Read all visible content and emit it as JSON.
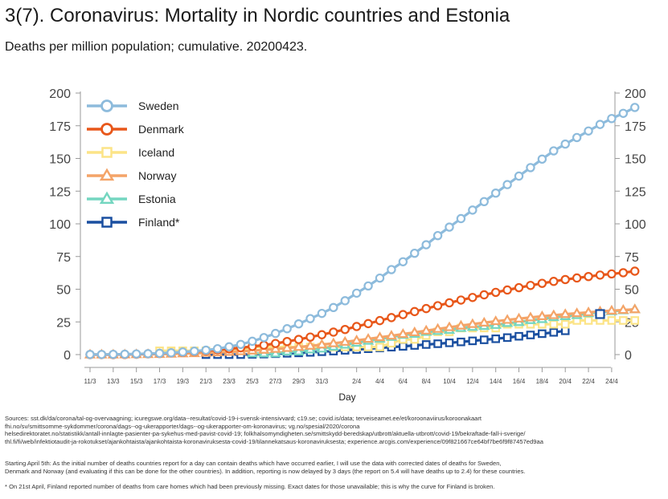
{
  "header": {
    "title": "3(7). Coronavirus: Mortality in Nordic countries and Estonia",
    "subtitle": "Deaths per million population; cumulative. 20200423."
  },
  "notes": {
    "sources": [
      "Sources: sst.dk/da/corona/tal-og-overvaagning; icuregswe.org/data--resultat/covid-19-i-svensk-intensivvard; c19.se; covid.is/data;  terveiseamet.ee/et/koroonaviirus/koroonakaart",
      "fhi.no/sv/smittsomme-sykdommer/corona/dags--og-ukerapporter/dags--og-ukerapporter-om-koronavirus; vg.no/spesial/2020/corona",
      "helsedirektoratet.no/statistikk/antall-innlagte-pasienter-pa-sykehus-med-pavist-covid-19; folkhalsomyndigheten.se/smittskydd-beredskap/utbrott/aktuella-utbrott/covid-19/bekraftade-fall-i-sverige/",
      "thl.fi/fi/web/infektiotaudit-ja-rokotukset/ajankohtaista/ajankohtaista-koronaviruksesta-covid-19/tilannekatsaus-koronaviruksesta; experience.arcgis.com/experience/09f821667ce64bf7be6f9f87457ed9aa"
    ],
    "method": [
      "Starting April 5th: As the initial number of deaths countries report for a day can contain deaths which have occurred earlier, I will use the data with corrected dates of deaths for Sweden,",
      "Denmark and Norway (and evaluating if this can be done for the other countries). In addition, reporting is now delayed by 3 days (the report on 5.4 will have deaths up to 2.4) for these countries."
    ],
    "footnote": "* On 21st April, Finland reported number of deaths from care homes which had been previously missing. Exact dates for those unavailable; this is why the curve for Finland is broken."
  },
  "chart_data": {
    "type": "line",
    "title": "3(7). Coronavirus: Mortality in Nordic countries and Estonia",
    "subtitle": "Deaths per million population; cumulative. 20200423.",
    "xlabel": "Day",
    "ylabel": "",
    "ylim": [
      0,
      200
    ],
    "yticks": [
      0,
      25,
      50,
      75,
      100,
      125,
      150,
      175,
      200
    ],
    "x_range": [
      "11/3",
      "24/4"
    ],
    "xticks": [
      "11/3",
      "13/3",
      "15/3",
      "17/3",
      "19/3",
      "21/3",
      "23/3",
      "25/3",
      "27/3",
      "29/3",
      "31/3",
      "2/4",
      "4/4",
      "6/4",
      "8/4",
      "10/4",
      "12/4",
      "14/4",
      "16/4",
      "18/4",
      "20/4",
      "22/4",
      "24/4"
    ],
    "legend_position": "top-left",
    "grid": false,
    "y_axis_both_sides": true,
    "series": [
      {
        "name": "Sweden",
        "color": "#8dbbdc",
        "marker": "circle",
        "start": "11/3",
        "values": [
          0.1,
          0.1,
          0.2,
          0.3,
          0.5,
          0.7,
          1,
          1.4,
          2,
          2.6,
          3.4,
          4.5,
          6,
          7.8,
          10.2,
          13,
          16.2,
          19.8,
          23.5,
          27.5,
          31.5,
          36,
          41.2,
          47,
          52.5,
          58.5,
          65,
          71,
          77.5,
          84,
          91,
          97.5,
          104,
          110.5,
          117,
          123.5,
          130,
          136.5,
          143,
          149.5,
          155.8,
          161,
          166,
          171,
          176,
          180.5,
          184.5,
          189
        ]
      },
      {
        "name": "Denmark",
        "color": "#e8571a",
        "marker": "circle",
        "start": "11/3",
        "values": [
          0,
          0,
          0,
          0.1,
          0.3,
          0.6,
          0.9,
          1.3,
          1.8,
          2.4,
          3,
          3.7,
          4.4,
          5.2,
          6.2,
          7.2,
          8.5,
          10,
          11.6,
          13.4,
          15.2,
          17.2,
          19.2,
          21.5,
          23.7,
          26,
          28.3,
          30.6,
          32.9,
          35.2,
          37.4,
          39.6,
          41.7,
          43.7,
          45.7,
          47.6,
          49.4,
          51.2,
          52.9,
          54.5,
          56,
          57.4,
          58.6,
          59.7,
          60.8,
          61.7,
          62.6,
          63.8
        ]
      },
      {
        "name": "Iceland",
        "color": "#fce487",
        "marker": "square",
        "start": "17/3",
        "values": [
          2.9,
          2.9,
          2.9,
          2.9,
          2.9,
          2.9,
          2.9,
          2.9,
          5.8,
          5.8,
          5.8,
          5.8,
          5.8,
          5.8,
          5.8,
          5.8,
          5.8,
          5.8,
          5.8,
          5.8,
          8.7,
          11.6,
          11.6,
          14.5,
          17.4,
          17.4,
          20.3,
          20.3,
          20.3,
          20.3,
          23.2,
          23.2,
          23.2,
          23.2,
          23.2,
          23.2,
          26.1,
          26.1,
          26.1,
          26.1,
          26.1,
          26.1
        ]
      },
      {
        "name": "Norway",
        "color": "#f4a468",
        "marker": "triangle",
        "start": "11/3",
        "values": [
          0,
          0,
          0,
          0.1,
          0.2,
          0.3,
          0.4,
          0.6,
          0.8,
          1,
          1.3,
          1.6,
          2,
          2.5,
          3,
          3.6,
          4.3,
          5,
          5.8,
          6.7,
          7.6,
          8.6,
          9.7,
          10.8,
          12,
          13.2,
          14.4,
          15.7,
          17,
          18.3,
          19.6,
          20.9,
          22.1,
          23.3,
          24.4,
          25.5,
          26.5,
          27.5,
          28.4,
          29.3,
          30.1,
          30.9,
          31.6,
          32.3,
          33,
          33.6,
          34.1,
          34.6
        ]
      },
      {
        "name": "Estonia",
        "color": "#74d6c0",
        "marker": "triangle",
        "start": "25/3",
        "values": [
          0.8,
          0.8,
          0.8,
          2.3,
          2.3,
          3.8,
          4.5,
          6,
          7.5,
          9,
          10.5,
          12,
          13.5,
          15,
          15.8,
          17.3,
          18,
          18.8,
          20.3,
          21.1,
          21.8,
          22.6,
          24.1,
          24.8,
          26.3,
          27.1,
          28.6,
          29.3,
          30.1,
          31.6,
          32.3,
          33.1,
          33.8,
          34.6
        ]
      },
      {
        "name": "Finland*",
        "color": "#1a4fa0",
        "marker": "square",
        "start": "21/3",
        "values": [
          0,
          0,
          0,
          0,
          0.2,
          0.4,
          0.7,
          1,
          1.3,
          1.7,
          2.2,
          2.7,
          3.3,
          3.9,
          4.5,
          5.1,
          5.7,
          6.3,
          7,
          7.7,
          8.3,
          9,
          9.7,
          10.5,
          11.3,
          12.1,
          13,
          14,
          15,
          16,
          17,
          18.2
        ]
      }
    ],
    "extra_points": [
      {
        "series": "Finland*",
        "x": "23/4",
        "y": 31
      }
    ]
  }
}
